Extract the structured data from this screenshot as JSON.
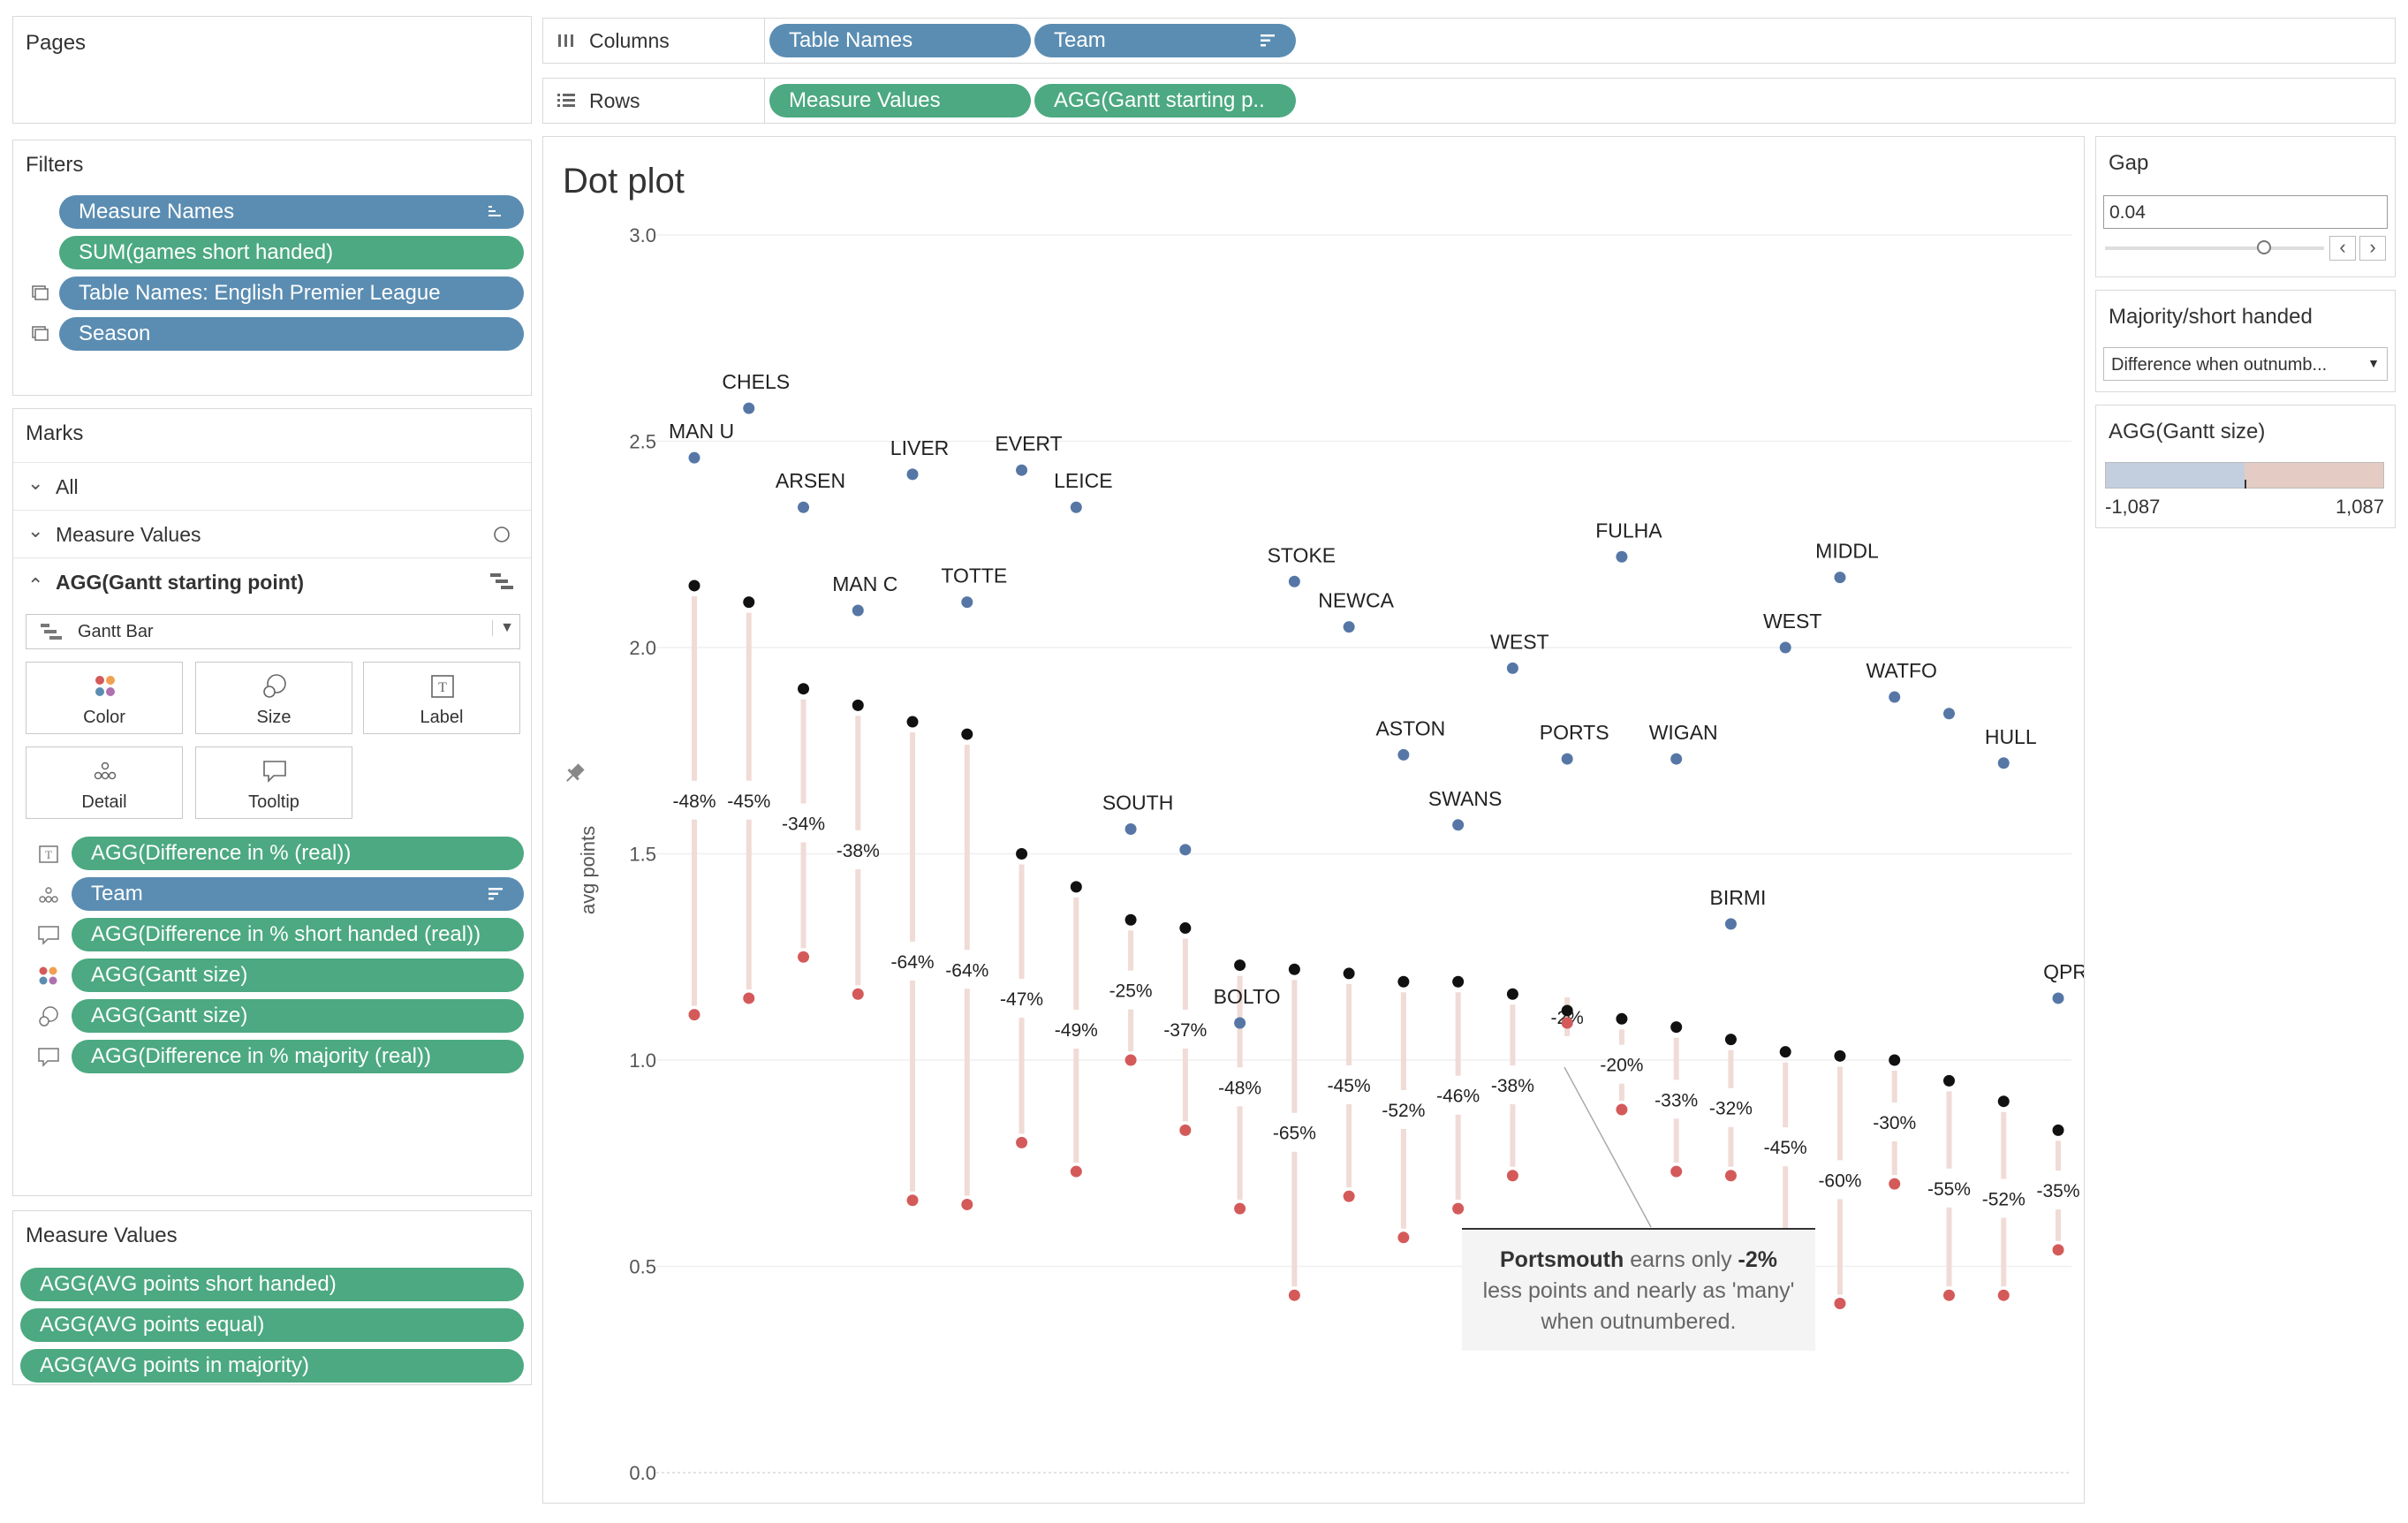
{
  "pages": {
    "title": "Pages"
  },
  "filters": {
    "title": "Filters",
    "items": [
      "Measure Names",
      "SUM(games short handed)",
      "Table Names: English Premier League",
      "Season"
    ]
  },
  "marks": {
    "title": "Marks",
    "all": "All",
    "measure_values": "Measure Values",
    "agg_gantt": "AGG(Gantt starting point)",
    "mark_type": "Gantt Bar",
    "buttons": [
      "Color",
      "Size",
      "Label",
      "Detail",
      "Tooltip"
    ],
    "fields": [
      "AGG(Difference in % (real))",
      "Team",
      "AGG(Difference in % short handed (real))",
      "AGG(Gantt size)",
      "AGG(Gantt size)",
      "AGG(Difference in % majority (real))"
    ]
  },
  "measure_values_card": {
    "title": "Measure Values",
    "items": [
      "AGG(AVG points short handed)",
      "AGG(AVG points equal)",
      "AGG(AVG points in majority)"
    ]
  },
  "shelves": {
    "columns_label": "Columns",
    "rows_label": "Rows",
    "columns": [
      "Table Names",
      "Team"
    ],
    "rows": [
      "Measure Values",
      "AGG(Gantt starting p.."
    ]
  },
  "gap": {
    "title": "Gap",
    "value": "0.04"
  },
  "majority": {
    "title": "Majority/short handed",
    "selected": "Difference when outnumb..."
  },
  "gantt_size": {
    "title": "AGG(Gantt size)",
    "min": "-1,087",
    "max": "1,087"
  },
  "colors": {
    "blue_pill": "#5b8db2",
    "green_pill": "#4ca981",
    "dot_blue": "#5677a6",
    "dot_red": "#d45a5a",
    "bar": "#f0dbd6"
  },
  "chart_data": {
    "type": "scatter",
    "title": "Dot plot",
    "ylabel": "avg points",
    "ylim": [
      0,
      3
    ],
    "yticks": [
      "0.0",
      "0.5",
      "1.0",
      "1.5",
      "2.0",
      "2.5",
      "3.0"
    ],
    "teams": [
      {
        "name": "MAN U",
        "blue": 2.46,
        "black": 2.15,
        "red": 1.11,
        "pct": "-48%"
      },
      {
        "name": "CHELS",
        "blue": 2.58,
        "black": 2.11,
        "red": 1.15,
        "pct": "-45%"
      },
      {
        "name": "ARSEN",
        "blue": 2.34,
        "black": 1.9,
        "red": 1.25,
        "pct": "-34%"
      },
      {
        "name": "MAN C",
        "blue": 2.09,
        "black": 1.86,
        "red": 1.16,
        "pct": "-38%"
      },
      {
        "name": "LIVER",
        "blue": 2.42,
        "black": 1.82,
        "red": 0.66,
        "pct": "-64%"
      },
      {
        "name": "TOTTE",
        "blue": 2.11,
        "black": 1.79,
        "red": 0.65,
        "pct": "-64%"
      },
      {
        "name": "EVERT",
        "blue": 2.43,
        "black": 1.5,
        "red": 0.8,
        "pct": "-47%"
      },
      {
        "name": "LEICE",
        "blue": 2.34,
        "black": 1.42,
        "red": 0.73,
        "pct": "-49%"
      },
      {
        "name": "SOUTH",
        "blue": 1.56,
        "black": 1.34,
        "red": 1.0,
        "pct": "-25%"
      },
      {
        "name": "",
        "blue": 1.51,
        "black": 1.32,
        "red": 0.83,
        "pct": "-37%"
      },
      {
        "name": "BOLTO",
        "blue": 1.09,
        "black": 1.23,
        "red": 0.64,
        "pct": "-48%"
      },
      {
        "name": "STOKE",
        "blue": 2.16,
        "black": 1.22,
        "red": 0.43,
        "pct": "-65%"
      },
      {
        "name": "NEWCA",
        "blue": 2.05,
        "black": 1.21,
        "red": 0.67,
        "pct": "-45%"
      },
      {
        "name": "ASTON",
        "blue": 1.74,
        "black": 1.19,
        "red": 0.57,
        "pct": "-52%"
      },
      {
        "name": "SWANS",
        "blue": 1.57,
        "black": 1.19,
        "red": 0.64,
        "pct": "-46%"
      },
      {
        "name": "WEST",
        "blue": 1.95,
        "black": 1.16,
        "red": 0.72,
        "pct": "-38%"
      },
      {
        "name": "PORTS",
        "blue": 1.73,
        "black": 1.12,
        "red": 1.09,
        "pct": "-2%"
      },
      {
        "name": "FULHA",
        "blue": 2.22,
        "black": 1.1,
        "red": 0.88,
        "pct": "-20%"
      },
      {
        "name": "WIGAN",
        "blue": 1.73,
        "black": 1.08,
        "red": 0.73,
        "pct": "-33%"
      },
      {
        "name": "BIRMI",
        "blue": 1.33,
        "black": 1.05,
        "red": 0.72,
        "pct": "-32%"
      },
      {
        "name": "WEST",
        "blue": 2.0,
        "black": 1.02,
        "red": 0.56,
        "pct": "-45%"
      },
      {
        "name": "MIDDL",
        "blue": 2.17,
        "black": 1.01,
        "red": 0.41,
        "pct": "-60%"
      },
      {
        "name": "WATFO",
        "blue": 1.88,
        "black": 1.0,
        "red": 0.7,
        "pct": "-30%"
      },
      {
        "name": "",
        "blue": 1.84,
        "black": 0.95,
        "red": 0.43,
        "pct": "-55%"
      },
      {
        "name": "HULL",
        "blue": 1.72,
        "black": 0.9,
        "red": 0.43,
        "pct": "-52%"
      },
      {
        "name": "QPR",
        "blue": 1.15,
        "black": 0.83,
        "red": 0.54,
        "pct": "-35%"
      }
    ],
    "annotation": {
      "bold1": "Portsmouth",
      "text1": " earns only ",
      "bold2": "-2%",
      "line2": "less points and nearly as 'many'",
      "line3": "when outnumbered."
    }
  }
}
